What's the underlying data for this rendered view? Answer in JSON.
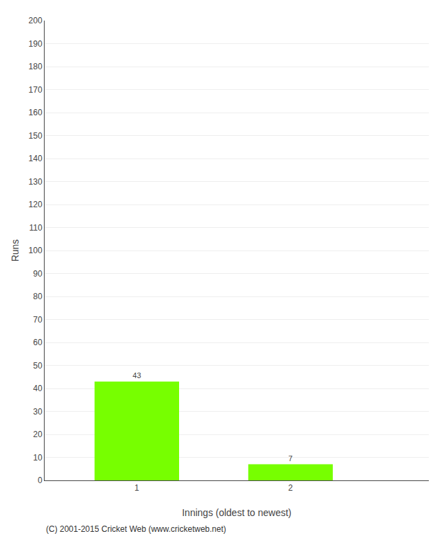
{
  "chart_data": {
    "type": "bar",
    "x": [
      1,
      2
    ],
    "values": [
      43,
      7
    ],
    "color": "#77ff00",
    "xlabel": "Innings (oldest to newest)",
    "ylabel": "Runs",
    "xlim": [
      0.4,
      2.9
    ],
    "xticks": [
      1,
      2
    ],
    "ylim": [
      0,
      200
    ],
    "yticks": [
      0,
      10,
      20,
      30,
      40,
      50,
      60,
      70,
      80,
      90,
      100,
      110,
      120,
      130,
      140,
      150,
      160,
      170,
      180,
      190,
      200
    ],
    "grid": true,
    "data_labels": true,
    "annotations": [
      "(C) 2001-2015 Cricket Web (www.cricketweb.net)"
    ]
  }
}
